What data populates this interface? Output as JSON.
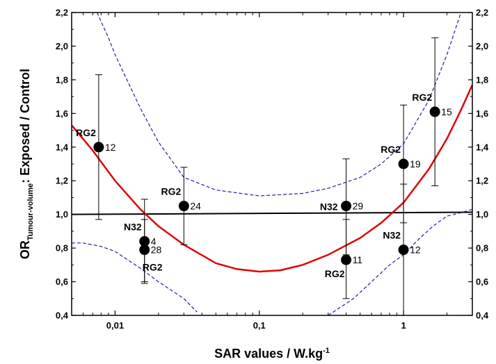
{
  "chart_data": {
    "type": "scatter",
    "xscale": "log",
    "xlim": [
      0.005,
      3
    ],
    "ylim": [
      0.4,
      2.2
    ],
    "xticks": [
      {
        "value": 0.01,
        "label": "0,01"
      },
      {
        "value": 0.1,
        "label": "0,1"
      },
      {
        "value": 1,
        "label": "1"
      }
    ],
    "yticks": [
      {
        "value": 0.4,
        "label": "0,4"
      },
      {
        "value": 0.6,
        "label": "0,6"
      },
      {
        "value": 0.8,
        "label": "0,8"
      },
      {
        "value": 1.0,
        "label": "1,0"
      },
      {
        "value": 1.2,
        "label": "1,2"
      },
      {
        "value": 1.4,
        "label": "1,4"
      },
      {
        "value": 1.6,
        "label": "1,6"
      },
      {
        "value": 1.8,
        "label": "1,8"
      },
      {
        "value": 2.0,
        "label": "2,0"
      },
      {
        "value": 2.2,
        "label": "2,2"
      }
    ],
    "xlabel": {
      "main": "SAR values / W.kg",
      "sup": "-1"
    },
    "ylabel": {
      "pre": "OR",
      "sub": "Tumour-volume",
      "post": ": Exposed / Control"
    },
    "grid": false,
    "reference_line": {
      "y_start": 1.0,
      "y_end": 1.013,
      "color": "#000000"
    },
    "points": [
      {
        "x": 0.0077,
        "y": 1.4,
        "err_low": 0.97,
        "err_high": 1.83,
        "group": "RG2",
        "n": "12",
        "group_pos": "upper-left",
        "n_pos": "right"
      },
      {
        "x": 0.016,
        "y": 0.84,
        "err_low": 0.6,
        "err_high": 1.09,
        "group": "N32",
        "n": "4",
        "group_pos": "upper-left",
        "n_pos": "right"
      },
      {
        "x": 0.016,
        "y": 0.79,
        "err_low": 0.59,
        "err_high": 0.97,
        "group": "RG2",
        "n": "28",
        "group_pos": "lower",
        "n_pos": "right"
      },
      {
        "x": 0.03,
        "y": 1.05,
        "err_low": 0.82,
        "err_high": 1.28,
        "group": "RG2",
        "n": "24",
        "group_pos": "upper-left",
        "n_pos": "right"
      },
      {
        "x": 0.4,
        "y": 1.05,
        "err_low": 0.76,
        "err_high": 1.33,
        "group": "N32",
        "n": "29",
        "group_pos": "left",
        "n_pos": "right"
      },
      {
        "x": 0.4,
        "y": 0.73,
        "err_low": 0.5,
        "err_high": 0.97,
        "group": "RG2",
        "n": "11",
        "group_pos": "lower-left",
        "n_pos": "right"
      },
      {
        "x": 1.0,
        "y": 1.3,
        "err_low": 0.95,
        "err_high": 1.65,
        "group": "RG2",
        "n": "19",
        "group_pos": "upper-left",
        "n_pos": "right"
      },
      {
        "x": 1.0,
        "y": 0.79,
        "err_low": 0.4,
        "err_high": 1.18,
        "group": "N32",
        "n": "12",
        "group_pos": "upper-left",
        "n_pos": "right"
      },
      {
        "x": 1.65,
        "y": 1.61,
        "err_low": 1.17,
        "err_high": 2.05,
        "group": "RG2",
        "n": "15",
        "group_pos": "upper-left",
        "n_pos": "right"
      }
    ],
    "fit_curve": {
      "color": "#e00000",
      "points": [
        [
          0.005,
          1.53
        ],
        [
          0.007,
          1.38
        ],
        [
          0.01,
          1.2
        ],
        [
          0.015,
          1.03
        ],
        [
          0.02,
          0.93
        ],
        [
          0.03,
          0.82
        ],
        [
          0.05,
          0.71
        ],
        [
          0.07,
          0.675
        ],
        [
          0.1,
          0.66
        ],
        [
          0.14,
          0.668
        ],
        [
          0.2,
          0.7
        ],
        [
          0.3,
          0.76
        ],
        [
          0.5,
          0.86
        ],
        [
          0.7,
          0.95
        ],
        [
          1.0,
          1.07
        ],
        [
          1.5,
          1.27
        ],
        [
          2.0,
          1.45
        ],
        [
          2.5,
          1.62
        ],
        [
          3.0,
          1.77
        ]
      ]
    },
    "conf_upper": {
      "color": "#1f1f9e",
      "points": [
        [
          0.0075,
          2.2
        ],
        [
          0.009,
          2.05
        ],
        [
          0.01,
          1.95
        ],
        [
          0.015,
          1.63
        ],
        [
          0.02,
          1.43
        ],
        [
          0.03,
          1.22
        ],
        [
          0.05,
          1.145
        ],
        [
          0.1,
          1.11
        ],
        [
          0.2,
          1.125
        ],
        [
          0.3,
          1.155
        ],
        [
          0.5,
          1.22
        ],
        [
          0.7,
          1.3
        ],
        [
          1.0,
          1.42
        ],
        [
          1.5,
          1.68
        ],
        [
          2.0,
          1.95
        ],
        [
          2.5,
          2.2
        ]
      ]
    },
    "conf_lower": {
      "color": "#1f1f9e",
      "points_left": [
        [
          0.005,
          0.83
        ],
        [
          0.006,
          0.83
        ],
        [
          0.008,
          0.81
        ],
        [
          0.01,
          0.78
        ],
        [
          0.015,
          0.68
        ],
        [
          0.02,
          0.6
        ],
        [
          0.03,
          0.5
        ],
        [
          0.037,
          0.42
        ]
      ],
      "points_right": [
        [
          0.3,
          0.4
        ],
        [
          0.45,
          0.5
        ],
        [
          0.6,
          0.6
        ],
        [
          0.8,
          0.7
        ],
        [
          1.0,
          0.76
        ],
        [
          1.3,
          0.86
        ],
        [
          1.6,
          0.93
        ],
        [
          2.0,
          0.99
        ],
        [
          2.5,
          1.01
        ],
        [
          3.0,
          1.03
        ]
      ]
    }
  }
}
